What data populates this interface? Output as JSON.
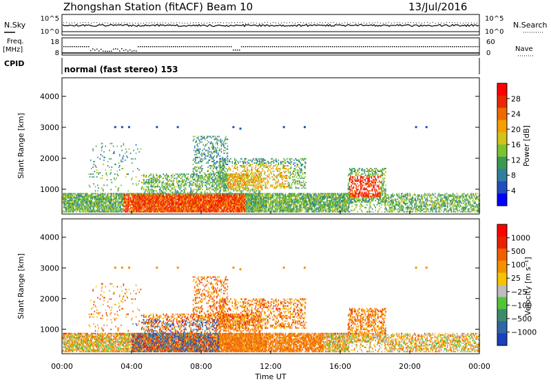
{
  "header": {
    "title": "Zhongshan Station (fitACF)",
    "beam": "Beam 10",
    "date": "13/Jul/2016"
  },
  "strip_nsky": {
    "left_label": "N.Sky",
    "right_label": "N.Search",
    "left_ticks": [
      "10^5",
      "10^0"
    ],
    "right_ticks": [
      "10^5",
      "10^0"
    ]
  },
  "strip_freq": {
    "left_label_1": "Freq.",
    "left_label_2": "[MHz]",
    "right_label": "Nave",
    "left_ticks": [
      "18",
      "8"
    ],
    "right_ticks": [
      "60",
      "0"
    ]
  },
  "strip_cpid": {
    "left_label": "CPID",
    "mode": "normal (fast stereo) 153"
  },
  "chart_data": [
    {
      "type": "heatmap",
      "name": "power",
      "ylabel": "Slant Range [km]",
      "xlabel": "",
      "yticks": [
        "1000",
        "2000",
        "3000",
        "4000"
      ],
      "yticks_values": [
        1000,
        2000,
        3000,
        4000
      ],
      "ylim": [
        200,
        4600
      ],
      "xlim": [
        0,
        24
      ],
      "colorbar": {
        "label": "Power [dB]",
        "ticks": [
          "4",
          "8",
          "12",
          "16",
          "20",
          "24",
          "28"
        ],
        "colors": [
          "#0000ff",
          "#1f4fbf",
          "#2f7f9f",
          "#3a9a55",
          "#7cc232",
          "#d4c21d",
          "#f5a000",
          "#ef6a00",
          "#e82a00",
          "#ff0000"
        ]
      },
      "colors": {
        "weak": "#1f4fbf",
        "mid": "#d4c21d",
        "strong": "#ff0000"
      }
    },
    {
      "type": "heatmap",
      "name": "velocity",
      "ylabel": "Slant Range [km]",
      "xlabel": "Time UT",
      "yticks": [
        "1000",
        "2000",
        "3000",
        "4000"
      ],
      "yticks_values": [
        1000,
        2000,
        3000,
        4000
      ],
      "ylim": [
        200,
        4600
      ],
      "xlim": [
        0,
        24
      ],
      "xticks": [
        "00:00",
        "04:00",
        "08:00",
        "12:00",
        "16:00",
        "20:00",
        "00:00"
      ],
      "xticks_values": [
        0,
        4,
        8,
        12,
        16,
        20,
        24
      ],
      "colorbar": {
        "label": "Velocity [m s⁻¹]",
        "ticks": [
          "1000",
          "500",
          "100",
          "25",
          "−25",
          "−100",
          "−500",
          "−1000"
        ],
        "colors": [
          "#1b3fbd",
          "#2f66a3",
          "#3c8c6c",
          "#55c43c",
          "#bdbdbd",
          "#f7c200",
          "#f59100",
          "#f06000",
          "#e82200",
          "#ff0000"
        ]
      }
    }
  ]
}
